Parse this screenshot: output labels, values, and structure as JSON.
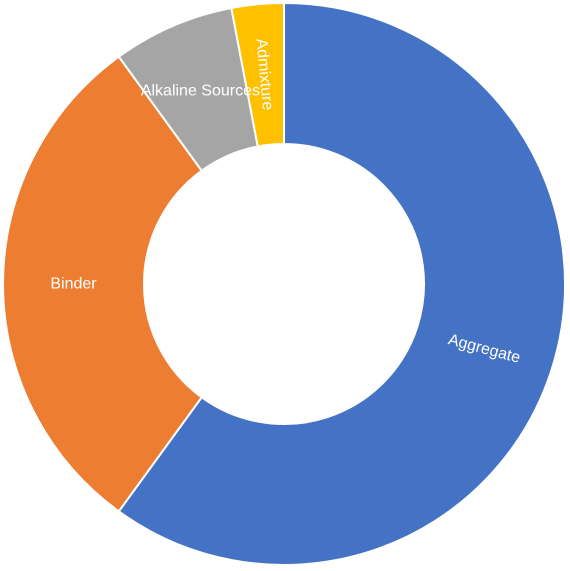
{
  "chart_data": {
    "type": "pie",
    "variant": "donut",
    "title": "",
    "legend": "none",
    "categories": [
      "Aggregate",
      "Binder",
      "Alkaline Sources",
      "Admixture"
    ],
    "values": [
      60,
      30,
      7,
      3
    ],
    "colors": [
      "#4472C4",
      "#ED7D31",
      "#A5A5A5",
      "#FFC000"
    ],
    "label_color": "#FFFFFF"
  }
}
